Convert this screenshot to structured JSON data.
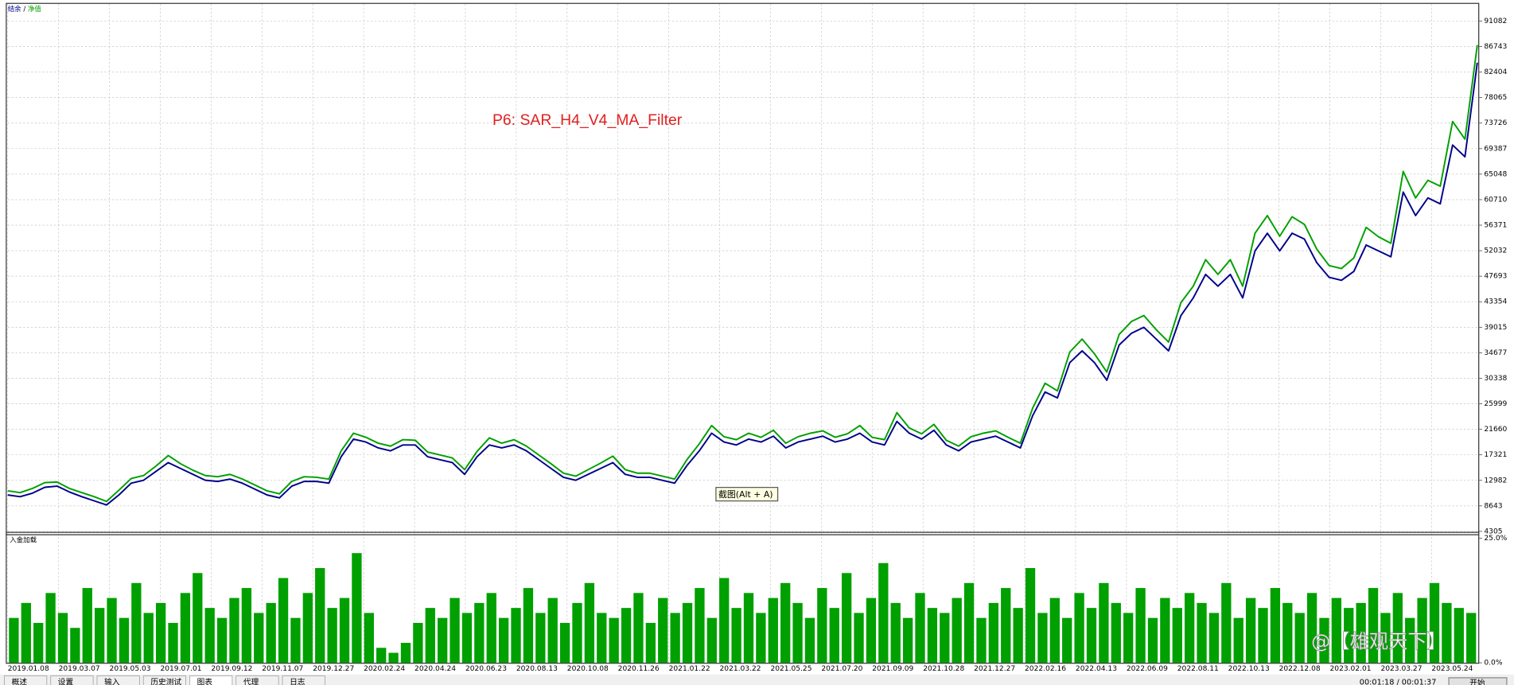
{
  "ui": {
    "tooltip": "截图(Alt + A)",
    "tabs": [
      "概述",
      "设置",
      "输入",
      "历史测试",
      "图表",
      "代理",
      "日志"
    ],
    "status_time": "00:01:18 / 00:01:37",
    "start_button": "开始",
    "watermark": "@【雄观天下】"
  },
  "chart_data": [
    {
      "type": "line",
      "annotation": "P6: SAR_H4_V4_MA_Filter",
      "ylim": [
        4305,
        94000
      ],
      "yticks": [
        4305,
        8643,
        12982,
        17321,
        21660,
        25999,
        30338,
        34677,
        39015,
        43354,
        47693,
        52032,
        56371,
        60710,
        65048,
        69387,
        73726,
        78065,
        82404,
        86743,
        91082
      ],
      "grid": true,
      "series": [
        {
          "name": "结余",
          "color": "#00008b",
          "values": [
            10500,
            10200,
            10800,
            11800,
            12000,
            11000,
            10200,
            9500,
            8800,
            10500,
            12500,
            13000,
            14500,
            16000,
            15000,
            14000,
            13000,
            12800,
            13200,
            12500,
            11500,
            10500,
            10000,
            12000,
            12800,
            12800,
            12500,
            17000,
            20000,
            19500,
            18500,
            18000,
            19000,
            19000,
            17000,
            16500,
            16000,
            14000,
            17000,
            19000,
            18500,
            19000,
            18000,
            16500,
            15000,
            13500,
            13000,
            14000,
            15000,
            16000,
            14000,
            13500,
            13500,
            13000,
            12500,
            15500,
            18000,
            21000,
            19500,
            19000,
            20000,
            19500,
            20500,
            18500,
            19500,
            20000,
            20500,
            19500,
            20000,
            21000,
            19500,
            19000,
            23000,
            21000,
            20000,
            21500,
            19000,
            18000,
            19500,
            20000,
            20500,
            19500,
            18500,
            24000,
            28000,
            27000,
            33000,
            35000,
            33000,
            30000,
            36000,
            38000,
            39000,
            37000,
            35000,
            41000,
            44000,
            48000,
            46000,
            48000,
            44000,
            52000,
            55000,
            52000,
            55000,
            54000,
            50000,
            47500,
            47000,
            48500,
            53000,
            52000,
            51000,
            62000,
            58000,
            61000,
            60000,
            70000,
            68000,
            84000
          ]
        },
        {
          "name": "净值",
          "color": "#00a000",
          "values": [
            11200,
            10900,
            11600,
            12600,
            12700,
            11600,
            10900,
            10200,
            9400,
            11300,
            13300,
            13800,
            15400,
            17200,
            15800,
            14700,
            13800,
            13600,
            14000,
            13200,
            12200,
            11200,
            10700,
            12800,
            13600,
            13500,
            13200,
            18000,
            21000,
            20300,
            19300,
            18800,
            19900,
            19800,
            17800,
            17300,
            16800,
            14800,
            17900,
            20200,
            19300,
            19900,
            18800,
            17300,
            15800,
            14200,
            13700,
            14800,
            15900,
            17100,
            14800,
            14200,
            14200,
            13700,
            13200,
            16500,
            19200,
            22300,
            20400,
            19900,
            21000,
            20300,
            21500,
            19300,
            20400,
            21000,
            21400,
            20300,
            20900,
            22300,
            20300,
            19900,
            24500,
            21900,
            20900,
            22500,
            19800,
            18800,
            20400,
            21000,
            21400,
            20300,
            19300,
            25300,
            29500,
            28200,
            34800,
            37000,
            34500,
            31400,
            37800,
            40000,
            41000,
            38600,
            36500,
            43200,
            46000,
            50500,
            48000,
            50500,
            46000,
            55000,
            58000,
            54500,
            57800,
            56500,
            52300,
            49500,
            49000,
            50800,
            56000,
            54400,
            53300,
            65500,
            61000,
            64000,
            63000,
            74000,
            71000,
            87000
          ]
        }
      ]
    },
    {
      "type": "bar",
      "title": "入金加载",
      "color": "#00a000",
      "ylim": [
        0,
        25
      ],
      "yticks": [
        {
          "value": 0,
          "label": "0.0%"
        },
        {
          "value": 25,
          "label": "25.0%"
        }
      ],
      "values": [
        9,
        12,
        8,
        14,
        10,
        7,
        15,
        11,
        13,
        9,
        16,
        10,
        12,
        8,
        14,
        18,
        11,
        9,
        13,
        15,
        10,
        12,
        17,
        9,
        14,
        19,
        11,
        13,
        22,
        10,
        3,
        2,
        4,
        8,
        11,
        9,
        13,
        10,
        12,
        14,
        9,
        11,
        15,
        10,
        13,
        8,
        12,
        16,
        10,
        9,
        11,
        14,
        8,
        13,
        10,
        12,
        15,
        9,
        17,
        11,
        14,
        10,
        13,
        16,
        12,
        9,
        15,
        11,
        18,
        10,
        13,
        20,
        12,
        9,
        14,
        11,
        10,
        13,
        16,
        9,
        12,
        15,
        11,
        19,
        10,
        13,
        9,
        14,
        11,
        16,
        12,
        10,
        15,
        9,
        13,
        11,
        14,
        12,
        10,
        16,
        9,
        13,
        11,
        15,
        12,
        10,
        14,
        9,
        13,
        11,
        12,
        15,
        10,
        14,
        9,
        13,
        16,
        12,
        11,
        10
      ],
      "x_labels": [
        "2019.01.08",
        "2019.03.07",
        "2019.05.03",
        "2019.07.01",
        "2019.09.12",
        "2019.11.07",
        "2019.12.27",
        "2020.02.24",
        "2020.04.24",
        "2020.06.23",
        "2020.08.13",
        "2020.10.08",
        "2020.11.26",
        "2021.01.22",
        "2021.03.22",
        "2021.05.25",
        "2021.07.20",
        "2021.09.09",
        "2021.10.28",
        "2021.12.27",
        "2022.02.16",
        "2022.04.13",
        "2022.06.09",
        "2022.08.11",
        "2022.10.13",
        "2022.12.08",
        "2023.02.01",
        "2023.03.27",
        "2023.05.24"
      ]
    }
  ]
}
